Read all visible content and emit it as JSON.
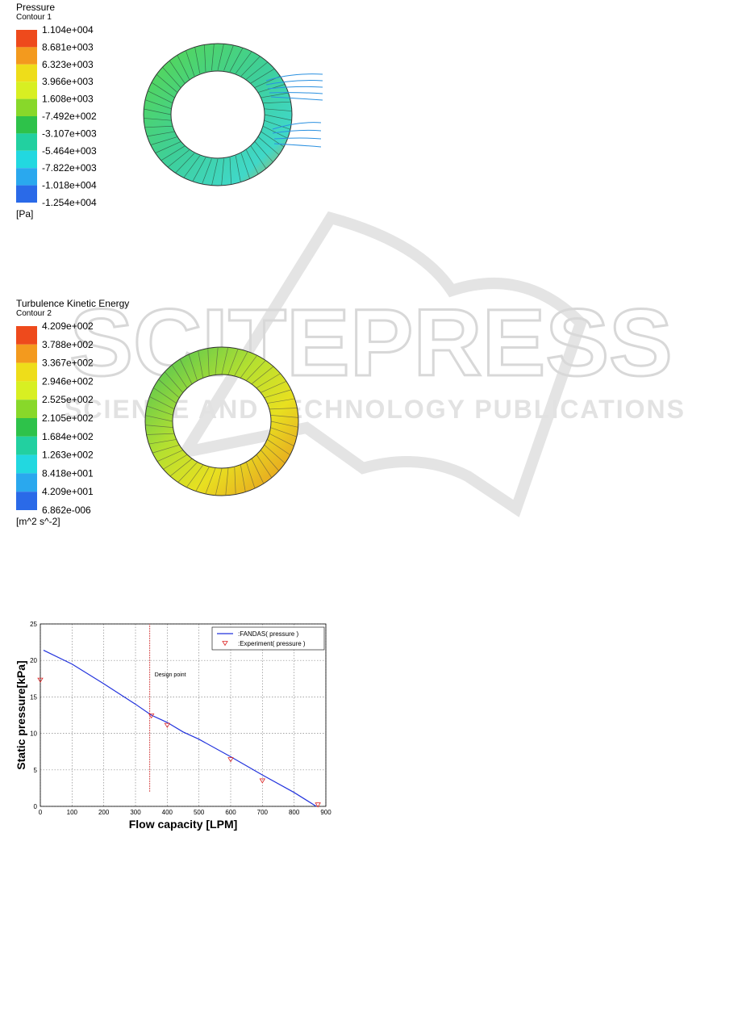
{
  "watermark": {
    "brand": "SCITEPRESS",
    "tagline": "SCIENCE AND TECHNOLOGY PUBLICATIONS"
  },
  "contour_1": {
    "title": "Pressure",
    "subtitle": "Contour 1",
    "levels": [
      "1.104e+004",
      "8.681e+003",
      "6.323e+003",
      "3.966e+003",
      "1.608e+003",
      "-7.492e+002",
      "-3.107e+003",
      "-5.464e+003",
      "-7.822e+003",
      "-1.018e+004",
      "-1.254e+004"
    ],
    "colors": [
      "#ee4a1c",
      "#f39a1e",
      "#eedd1a",
      "#d8ef22",
      "#88d82a",
      "#2ec24a",
      "#22d0a0",
      "#22d8e0",
      "#2aa8ee",
      "#2a6ae8",
      "#1a3ce8"
    ],
    "unit": "[Pa]"
  },
  "contour_2": {
    "title": "Turbulence Kinetic Energy",
    "subtitle": "Contour 2",
    "levels": [
      "4.209e+002",
      "3.788e+002",
      "3.367e+002",
      "2.946e+002",
      "2.525e+002",
      "2.105e+002",
      "1.684e+002",
      "1.263e+002",
      "8.418e+001",
      "4.209e+001",
      "6.862e-006"
    ],
    "colors": [
      "#ee4a1c",
      "#f39a1e",
      "#eedd1a",
      "#d8ef22",
      "#88d82a",
      "#2ec24a",
      "#22d0a0",
      "#22d8e0",
      "#2aa8ee",
      "#2a6ae8",
      "#1a3ce8"
    ],
    "unit": "[m^2 s^-2]"
  },
  "chart_data": {
    "type": "line",
    "x_label": "Flow capacity [LPM]",
    "y_label": "Static pressure[kPa]",
    "xlim": [
      0,
      900
    ],
    "ylim": [
      0,
      25
    ],
    "xticks": [
      0,
      100,
      200,
      300,
      400,
      500,
      600,
      700,
      800,
      900
    ],
    "yticks": [
      0,
      5,
      10,
      15,
      20,
      25
    ],
    "grid": true,
    "legend": "top-right",
    "series": [
      {
        "name": ":FANDAS( pressure )",
        "color": "#2233dd",
        "kind": "line",
        "x": [
          10,
          100,
          200,
          300,
          350,
          400,
          450,
          500,
          600,
          700,
          800,
          870
        ],
        "values": [
          21.4,
          19.5,
          16.8,
          14.0,
          12.5,
          11.5,
          10.2,
          9.2,
          6.8,
          4.3,
          1.9,
          0
        ]
      },
      {
        "name": ":Experiment( pressure )",
        "color": "#dd2222",
        "kind": "scatter",
        "x": [
          0,
          350,
          400,
          600,
          700,
          875
        ],
        "values": [
          17.3,
          12.4,
          11.1,
          6.4,
          3.5,
          0.2
        ]
      }
    ],
    "annotation": {
      "text": "Design point",
      "x": 345,
      "y": [
        2,
        25
      ]
    }
  }
}
